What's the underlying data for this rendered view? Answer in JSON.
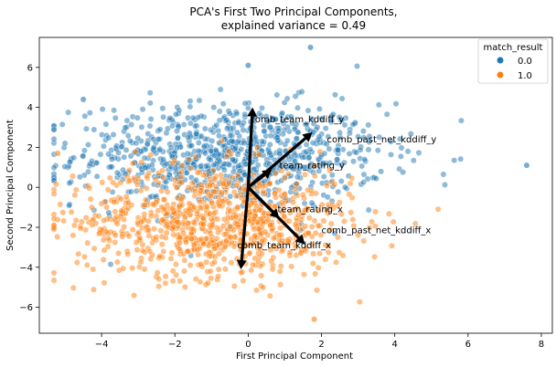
{
  "chart_data": {
    "type": "scatter",
    "title_line1": "PCA's First Two Principal Components,",
    "title_line2": "explained variance = 0.49",
    "xlabel": "First Principal Component",
    "ylabel": "Second Principal Component",
    "xlim": [
      -5.7,
      8.3
    ],
    "ylim": [
      -7.3,
      7.5
    ],
    "xticks": [
      -4,
      -2,
      0,
      2,
      4,
      6,
      8
    ],
    "yticks": [
      -6,
      -4,
      -2,
      0,
      2,
      4,
      6
    ],
    "grid": false,
    "legend": {
      "title": "match_result",
      "placement": "top-right",
      "entries": [
        {
          "label": "0.0",
          "color": "#1f77b4"
        },
        {
          "label": "1.0",
          "color": "#ff7f0e"
        }
      ]
    },
    "series": [
      {
        "name": "0.0",
        "color": "#1f77b4",
        "center": [
          -0.5,
          1.6
        ],
        "spread": [
          2.1,
          1.3
        ],
        "count": 900
      },
      {
        "name": "1.0",
        "color": "#ff7f0e",
        "center": [
          -0.9,
          -1.7
        ],
        "spread": [
          1.9,
          1.4
        ],
        "count": 900
      }
    ],
    "outliers": [
      {
        "x": 1.7,
        "y": 7.0,
        "series": "0.0"
      },
      {
        "x": 7.6,
        "y": 1.1,
        "series": "0.0"
      },
      {
        "x": -5.2,
        "y": 1.7,
        "series": "1.0"
      },
      {
        "x": 1.8,
        "y": -6.6,
        "series": "1.0"
      },
      {
        "x": 0,
        "y": 6.1,
        "series": "0.0"
      },
      {
        "x": -4.5,
        "y": 4.4,
        "series": "0.0"
      }
    ],
    "vectors": [
      {
        "label": "comb_team_kddiff_y",
        "x": 0.12,
        "y": 4.0
      },
      {
        "label": "comb_past_net_kddiff_y",
        "x": 1.75,
        "y": 2.75
      },
      {
        "label": "team_rating_y",
        "x": 0.65,
        "y": 0.9
      },
      {
        "label": "team_rating_x",
        "x": 0.85,
        "y": -1.55
      },
      {
        "label": "comb_past_net_kddiff_x",
        "x": 1.55,
        "y": -2.85
      },
      {
        "label": "comb_team_kddiff_x",
        "x": -0.2,
        "y": -4.1
      }
    ],
    "vector_labels": [
      {
        "label": "comb_team_kddiff_y",
        "x": 0.05,
        "y": 3.25
      },
      {
        "label": "comb_past_net_kddiff_y",
        "x": 2.15,
        "y": 2.25
      },
      {
        "label": "team_rating_y",
        "x": 0.85,
        "y": 0.95
      },
      {
        "label": "team_rating_x",
        "x": 0.8,
        "y": -1.25
      },
      {
        "label": "comb_past_net_kddiff_x",
        "x": 2.0,
        "y": -2.3
      },
      {
        "label": "comb_team_kddiff_x",
        "x": -0.3,
        "y": -3.05
      }
    ]
  }
}
